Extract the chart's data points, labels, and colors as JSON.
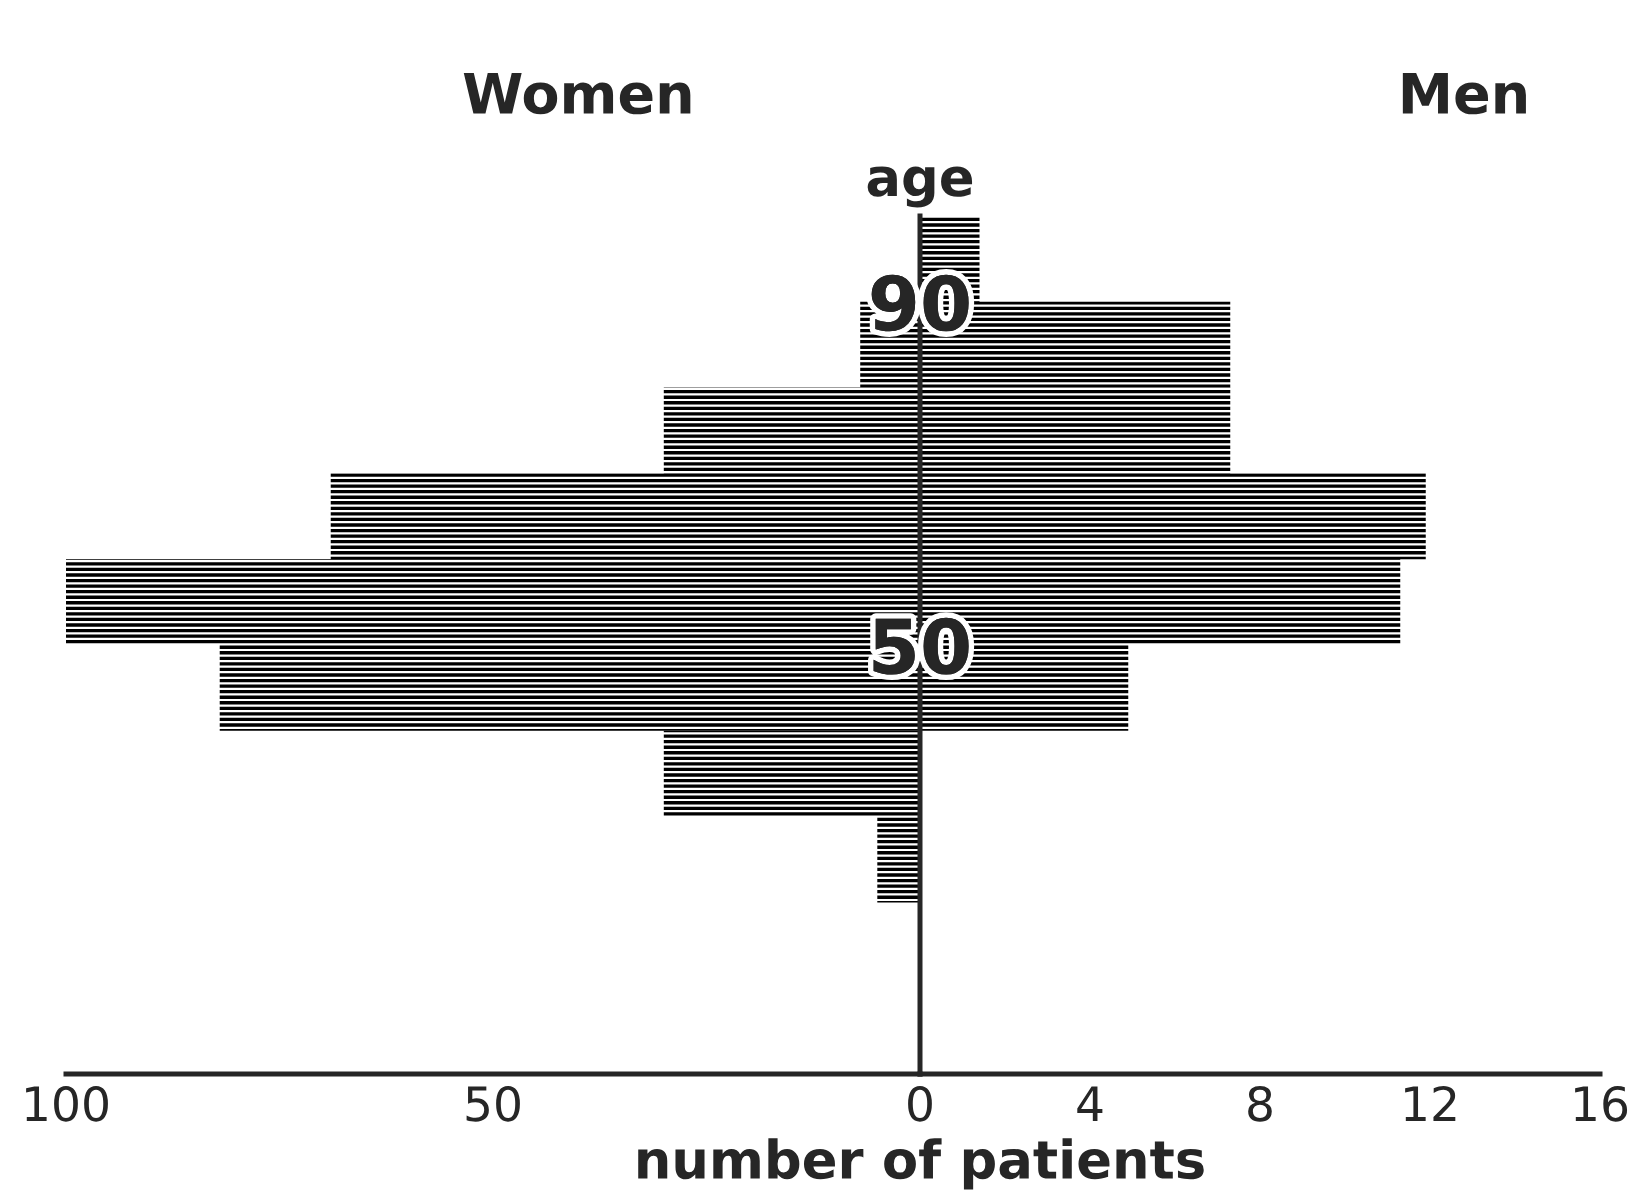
{
  "chart_data": [
    {
      "type": "histogram",
      "orientation": "horizontal",
      "title": "Women",
      "bins": [
        20,
        30,
        40,
        50,
        60,
        70,
        80,
        90
      ],
      "values": [
        5,
        30,
        82,
        100,
        69,
        30,
        7
      ],
      "color": "#000000",
      "xlim": [
        100,
        0
      ],
      "xticks": [
        100,
        50
      ],
      "ylim": [
        0,
        100
      ],
      "tick_labels": "x",
      "grid": false
    },
    {
      "type": "histogram",
      "orientation": "horizontal",
      "title": "Men",
      "xlabel": "number of patients",
      "ylabel": "age",
      "bins": [
        40,
        50,
        60,
        70,
        80,
        90,
        100
      ],
      "values": [
        4.9,
        11.3,
        11.9,
        7.3,
        7.3,
        1.4
      ],
      "color": "#000000",
      "xlim": [
        0,
        16
      ],
      "xticks": [
        0,
        4,
        8,
        12,
        16
      ],
      "ylim": [
        0,
        100
      ],
      "yticks": [
        50,
        90
      ],
      "grid": false
    }
  ]
}
